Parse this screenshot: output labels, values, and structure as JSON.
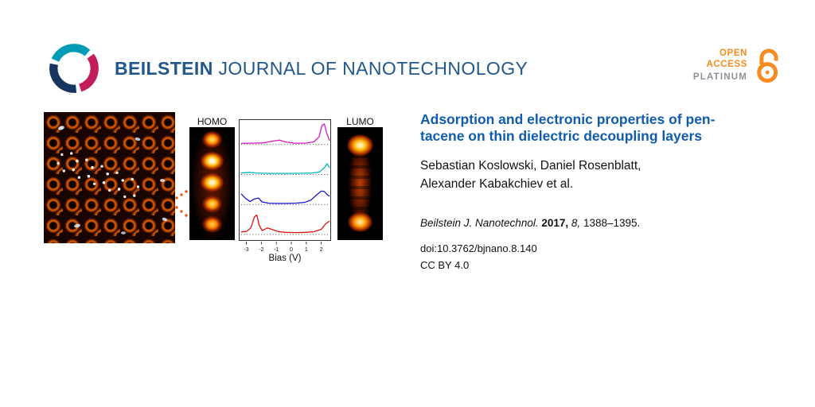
{
  "colors": {
    "brand_blue": "#22578b",
    "title_blue": "#0f5cad",
    "oa_orange": "#f68b1f",
    "platinum_gray": "#8d929b"
  },
  "header": {
    "brand_bold": "BEILSTEIN",
    "brand_rest": "JOURNAL OF NANOTECHNOLOGY",
    "open_access": {
      "line1": "OPEN",
      "line2": "ACCESS",
      "line3": "PLATINUM"
    }
  },
  "figure": {
    "homo_label": "HOMO",
    "lumo_label": "LUMO"
  },
  "chart_data": {
    "type": "line",
    "title": "",
    "xlabel": "Bias (V)",
    "ylabel": "",
    "xlim": [
      -3.45,
      2.6
    ],
    "xticks": [
      -3,
      -2,
      -1,
      0,
      1,
      2
    ],
    "grid": false,
    "legend": "none",
    "baseline_style": "dotted",
    "series": [
      {
        "name": "spectrum-top-magenta",
        "color": "#d917c1",
        "points": [
          [
            -3.35,
            0.05
          ],
          [
            -2.6,
            0.06
          ],
          [
            -1.9,
            0.07
          ],
          [
            -1.2,
            0.16
          ],
          [
            -0.8,
            0.2
          ],
          [
            -0.4,
            0.12
          ],
          [
            0.2,
            0.06
          ],
          [
            0.9,
            0.06
          ],
          [
            1.5,
            0.12
          ],
          [
            1.85,
            0.35
          ],
          [
            2.05,
            0.88
          ],
          [
            2.2,
            0.95
          ],
          [
            2.35,
            0.55
          ],
          [
            2.55,
            0.18
          ]
        ]
      },
      {
        "name": "spectrum-cyan",
        "color": "#00b7c3",
        "points": [
          [
            -3.35,
            0.07
          ],
          [
            -2.8,
            0.1
          ],
          [
            -2.3,
            0.07
          ],
          [
            -1.6,
            0.05
          ],
          [
            -0.8,
            0.05
          ],
          [
            0,
            0.05
          ],
          [
            0.8,
            0.06
          ],
          [
            1.4,
            0.07
          ],
          [
            1.9,
            0.12
          ],
          [
            2.2,
            0.32
          ],
          [
            2.4,
            0.5
          ],
          [
            2.55,
            0.3
          ]
        ]
      },
      {
        "name": "spectrum-blue",
        "color": "#1616c8",
        "points": [
          [
            -3.35,
            0.5
          ],
          [
            -3.05,
            0.28
          ],
          [
            -2.75,
            0.14
          ],
          [
            -2.45,
            0.26
          ],
          [
            -2.2,
            0.3
          ],
          [
            -1.95,
            0.12
          ],
          [
            -1.5,
            0.06
          ],
          [
            -1,
            0.05
          ],
          [
            -0.4,
            0.05
          ],
          [
            0.3,
            0.06
          ],
          [
            0.9,
            0.1
          ],
          [
            1.3,
            0.2
          ],
          [
            1.7,
            0.45
          ],
          [
            2.0,
            0.62
          ],
          [
            2.2,
            0.6
          ],
          [
            2.4,
            0.45
          ],
          [
            2.55,
            0.38
          ]
        ]
      },
      {
        "name": "spectrum-bottom-red",
        "color": "#e01111",
        "points": [
          [
            -3.35,
            0.12
          ],
          [
            -3.0,
            0.14
          ],
          [
            -2.7,
            0.3
          ],
          [
            -2.45,
            0.82
          ],
          [
            -2.3,
            0.9
          ],
          [
            -2.15,
            0.45
          ],
          [
            -1.95,
            0.18
          ],
          [
            -1.6,
            0.3
          ],
          [
            -1.3,
            0.24
          ],
          [
            -0.9,
            0.14
          ],
          [
            -0.4,
            0.1
          ],
          [
            0.3,
            0.09
          ],
          [
            0.9,
            0.1
          ],
          [
            1.5,
            0.13
          ],
          [
            2.0,
            0.24
          ],
          [
            2.3,
            0.5
          ],
          [
            2.55,
            0.62
          ]
        ]
      }
    ]
  },
  "article": {
    "title_lines": [
      "Adsorption and electronic properties of pen-",
      "tacene on thin dielectric decoupling layers"
    ],
    "authors_lines": [
      "Sebastian Koslowski, Daniel Rosenblatt,",
      "Alexander Kabakchiev et al."
    ],
    "citation": {
      "journal": "Beilstein J. Nanotechnol.",
      "year": "2017,",
      "volume": "8,",
      "pages": "1388–1395."
    },
    "doi": "doi:10.3762/bjnano.8.140",
    "license": "CC BY 4.0"
  }
}
